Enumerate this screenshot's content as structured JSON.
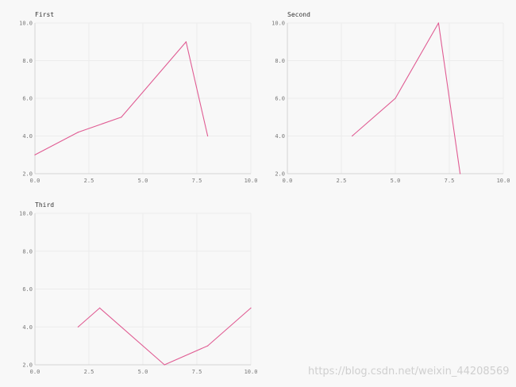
{
  "chart_data": [
    {
      "type": "line",
      "title": "First",
      "x": [
        0,
        2,
        4,
        7,
        8
      ],
      "series": [
        {
          "values": [
            3,
            4.2,
            5,
            9,
            4
          ],
          "color": "#e05c93"
        }
      ],
      "xlim": [
        0,
        10
      ],
      "ylim": [
        2,
        10
      ],
      "xticks": [
        0,
        2.5,
        5,
        7.5,
        10
      ],
      "yticks": [
        2,
        4,
        6,
        8,
        10
      ],
      "xtick_labels": [
        "0.0",
        "2.5",
        "5.0",
        "7.5",
        "10.0"
      ],
      "ytick_labels": [
        "2.0",
        "4.0",
        "6.0",
        "8.0",
        "10.0"
      ],
      "grid": true
    },
    {
      "type": "line",
      "title": "Second",
      "x": [
        3,
        5,
        7,
        8
      ],
      "series": [
        {
          "values": [
            4,
            6,
            10,
            2
          ],
          "color": "#e05c93"
        }
      ],
      "xlim": [
        0,
        10
      ],
      "ylim": [
        2,
        10
      ],
      "xticks": [
        0,
        2.5,
        5,
        7.5,
        10
      ],
      "yticks": [
        2,
        4,
        6,
        8,
        10
      ],
      "xtick_labels": [
        "0.0",
        "2.5",
        "5.0",
        "7.5",
        "10.0"
      ],
      "ytick_labels": [
        "2.0",
        "4.0",
        "6.0",
        "8.0",
        "10.0"
      ],
      "grid": true
    },
    {
      "type": "line",
      "title": "Third",
      "x": [
        2,
        3,
        6,
        8,
        10
      ],
      "series": [
        {
          "values": [
            4,
            5,
            2,
            3,
            5
          ],
          "color": "#e05c93"
        }
      ],
      "xlim": [
        0,
        10
      ],
      "ylim": [
        2,
        10
      ],
      "xticks": [
        0,
        2.5,
        5,
        7.5,
        10
      ],
      "yticks": [
        2,
        4,
        6,
        8,
        10
      ],
      "xtick_labels": [
        "0.0",
        "2.5",
        "5.0",
        "7.5",
        "10.0"
      ],
      "ytick_labels": [
        "2.0",
        "4.0",
        "6.0",
        "8.0",
        "10.0"
      ],
      "grid": true
    }
  ],
  "watermark": "https://blog.csdn.net/weixin_44208569"
}
